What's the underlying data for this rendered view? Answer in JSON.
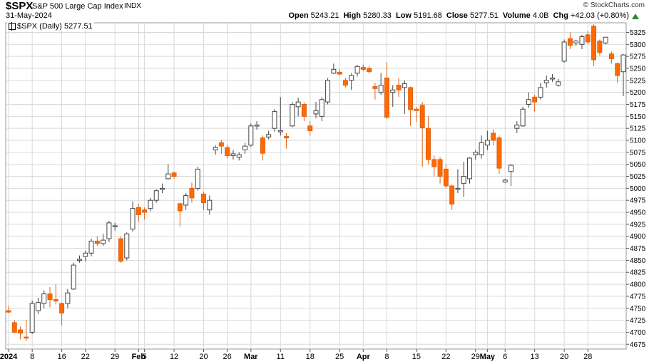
{
  "header": {
    "symbol": "$SPX",
    "name": "S&P 500 Large Cap Index",
    "exchange": "INDX",
    "date": "31-May-2024",
    "credit": "© StockCharts.com",
    "open_label": "Open",
    "open": "5243.21",
    "high_label": "High",
    "high": "5280.33",
    "low_label": "Low",
    "low": "5191.68",
    "close_label": "Close",
    "close": "5277.51",
    "volume_label": "Volume",
    "volume": "4.0B",
    "chg_label": "Chg",
    "chg": "+42.03 (+0.80%)",
    "chg_icon": "up-triangle-icon"
  },
  "legend": {
    "text": "$SPX (Daily) 5277.51"
  },
  "colors": {
    "up": "#ffffff",
    "up_stroke": "#444444",
    "down": "#ff6a00",
    "down_stroke": "#e06010",
    "neutral": "#8a9099",
    "grid": "#d9d9d9"
  },
  "chart_data": {
    "type": "candlestick",
    "ylim": [
      4665,
      5345
    ],
    "y_ticks": [
      4675,
      4700,
      4725,
      4750,
      4775,
      4800,
      4825,
      4850,
      4875,
      4900,
      4925,
      4950,
      4975,
      5000,
      5025,
      5050,
      5075,
      5100,
      5125,
      5150,
      5175,
      5200,
      5225,
      5250,
      5275,
      5300,
      5325
    ],
    "x_labels": [
      {
        "i": 0,
        "label": "2024",
        "bold": true
      },
      {
        "i": 4,
        "label": "8"
      },
      {
        "i": 9,
        "label": "16"
      },
      {
        "i": 13,
        "label": "22"
      },
      {
        "i": 18,
        "label": "29"
      },
      {
        "i": 22,
        "label": "Feb",
        "bold": true
      },
      {
        "i": 23,
        "label": "5"
      },
      {
        "i": 28,
        "label": "12"
      },
      {
        "i": 33,
        "label": "20"
      },
      {
        "i": 37,
        "label": "26"
      },
      {
        "i": 41,
        "label": "Mar",
        "bold": true
      },
      {
        "i": 46,
        "label": "11"
      },
      {
        "i": 51,
        "label": "18"
      },
      {
        "i": 56,
        "label": "25"
      },
      {
        "i": 60,
        "label": "Apr",
        "bold": true
      },
      {
        "i": 64,
        "label": "8"
      },
      {
        "i": 69,
        "label": "15"
      },
      {
        "i": 74,
        "label": "22"
      },
      {
        "i": 79,
        "label": "29"
      },
      {
        "i": 81,
        "label": "May",
        "bold": true
      },
      {
        "i": 84,
        "label": "6"
      },
      {
        "i": 89,
        "label": "13"
      },
      {
        "i": 94,
        "label": "20"
      },
      {
        "i": 98,
        "label": "28"
      }
    ],
    "candles": [
      {
        "o": 4745,
        "h": 4755,
        "l": 4740,
        "c": 4742
      },
      {
        "o": 4720,
        "h": 4725,
        "l": 4698,
        "c": 4700
      },
      {
        "o": 4705,
        "h": 4712,
        "l": 4685,
        "c": 4698
      },
      {
        "o": 4690,
        "h": 4726,
        "l": 4682,
        "c": 4688
      },
      {
        "o": 4700,
        "h": 4766,
        "l": 4696,
        "c": 4760
      },
      {
        "o": 4745,
        "h": 4772,
        "l": 4738,
        "c": 4762
      },
      {
        "o": 4760,
        "h": 4787,
        "l": 4750,
        "c": 4780
      },
      {
        "o": 4780,
        "h": 4794,
        "l": 4752,
        "c": 4768
      },
      {
        "o": 4768,
        "h": 4800,
        "l": 4758,
        "c": 4765
      },
      {
        "o": 4760,
        "h": 4762,
        "l": 4715,
        "c": 4740
      },
      {
        "o": 4760,
        "h": 4790,
        "l": 4750,
        "c": 4782
      },
      {
        "o": 4790,
        "h": 4845,
        "l": 4788,
        "c": 4840
      },
      {
        "o": 4850,
        "h": 4860,
        "l": 4845,
        "c": 4852
      },
      {
        "o": 4858,
        "h": 4870,
        "l": 4848,
        "c": 4865
      },
      {
        "o": 4865,
        "h": 4895,
        "l": 4858,
        "c": 4890
      },
      {
        "o": 4890,
        "h": 4900,
        "l": 4880,
        "c": 4885
      },
      {
        "o": 4885,
        "h": 4905,
        "l": 4880,
        "c": 4892
      },
      {
        "o": 4895,
        "h": 4932,
        "l": 4888,
        "c": 4928
      },
      {
        "o": 4920,
        "h": 4928,
        "l": 4912,
        "c": 4922
      },
      {
        "o": 4895,
        "h": 4900,
        "l": 4845,
        "c": 4848
      },
      {
        "o": 4855,
        "h": 4908,
        "l": 4850,
        "c": 4905
      },
      {
        "o": 4915,
        "h": 4973,
        "l": 4910,
        "c": 4958
      },
      {
        "o": 4960,
        "h": 4968,
        "l": 4930,
        "c": 4945
      },
      {
        "o": 4955,
        "h": 4960,
        "l": 4935,
        "c": 4950
      },
      {
        "o": 4958,
        "h": 4980,
        "l": 4952,
        "c": 4975
      },
      {
        "o": 4975,
        "h": 4998,
        "l": 4970,
        "c": 4995
      },
      {
        "o": 4998,
        "h": 5010,
        "l": 4990,
        "c": 5000
      },
      {
        "o": 5020,
        "h": 5050,
        "l": 5018,
        "c": 5030
      },
      {
        "o": 5032,
        "h": 5035,
        "l": 5020,
        "c": 5025
      },
      {
        "o": 4968,
        "h": 4970,
        "l": 4920,
        "c": 4953
      },
      {
        "o": 4965,
        "h": 4990,
        "l": 4955,
        "c": 4985
      },
      {
        "o": 5000,
        "h": 5012,
        "l": 4970,
        "c": 4980
      },
      {
        "o": 5000,
        "h": 5045,
        "l": 4995,
        "c": 5040
      },
      {
        "o": 4988,
        "h": 4992,
        "l": 4955,
        "c": 4970
      },
      {
        "o": 4955,
        "h": 4985,
        "l": 4945,
        "c": 4975
      },
      {
        "o": 5080,
        "h": 5090,
        "l": 5070,
        "c": 5085
      },
      {
        "o": 5095,
        "h": 5101,
        "l": 5072,
        "c": 5088
      },
      {
        "o": 5085,
        "h": 5091,
        "l": 5062,
        "c": 5068
      },
      {
        "o": 5068,
        "h": 5080,
        "l": 5060,
        "c": 5072
      },
      {
        "o": 5065,
        "h": 5075,
        "l": 5058,
        "c": 5070
      },
      {
        "o": 5080,
        "h": 5095,
        "l": 5072,
        "c": 5088
      },
      {
        "o": 5090,
        "h": 5135,
        "l": 5086,
        "c": 5130
      },
      {
        "o": 5130,
        "h": 5140,
        "l": 5122,
        "c": 5132
      },
      {
        "o": 5105,
        "h": 5110,
        "l": 5058,
        "c": 5073
      },
      {
        "o": 5107,
        "h": 5120,
        "l": 5102,
        "c": 5112
      },
      {
        "o": 5125,
        "h": 5165,
        "l": 5118,
        "c": 5160
      },
      {
        "o": 5120,
        "h": 5190,
        "l": 5110,
        "c": 5120
      },
      {
        "o": 5108,
        "h": 5115,
        "l": 5083,
        "c": 5105
      },
      {
        "o": 5130,
        "h": 5180,
        "l": 5127,
        "c": 5175
      },
      {
        "o": 5170,
        "h": 5189,
        "l": 5150,
        "c": 5180
      },
      {
        "o": 5175,
        "h": 5179,
        "l": 5140,
        "c": 5150
      },
      {
        "o": 5130,
        "h": 5140,
        "l": 5110,
        "c": 5120
      },
      {
        "o": 5155,
        "h": 5180,
        "l": 5146,
        "c": 5162
      },
      {
        "o": 5150,
        "h": 5190,
        "l": 5140,
        "c": 5185
      },
      {
        "o": 5180,
        "h": 5230,
        "l": 5175,
        "c": 5225
      },
      {
        "o": 5240,
        "h": 5260,
        "l": 5238,
        "c": 5248
      },
      {
        "o": 5242,
        "h": 5248,
        "l": 5236,
        "c": 5238
      },
      {
        "o": 5225,
        "h": 5230,
        "l": 5211,
        "c": 5215
      },
      {
        "o": 5225,
        "h": 5240,
        "l": 5205,
        "c": 5235
      },
      {
        "o": 5240,
        "h": 5257,
        "l": 5233,
        "c": 5254
      },
      {
        "o": 5252,
        "h": 5258,
        "l": 5245,
        "c": 5248
      },
      {
        "o": 5250,
        "h": 5255,
        "l": 5240,
        "c": 5243
      },
      {
        "o": 5212,
        "h": 5220,
        "l": 5185,
        "c": 5208
      },
      {
        "o": 5200,
        "h": 5240,
        "l": 5195,
        "c": 5215
      },
      {
        "o": 5230,
        "h": 5263,
        "l": 5145,
        "c": 5148
      },
      {
        "o": 5200,
        "h": 5215,
        "l": 5170,
        "c": 5205
      },
      {
        "o": 5215,
        "h": 5230,
        "l": 5190,
        "c": 5205
      },
      {
        "o": 5210,
        "h": 5225,
        "l": 5155,
        "c": 5218
      },
      {
        "o": 5210,
        "h": 5212,
        "l": 5130,
        "c": 5164
      },
      {
        "o": 5165,
        "h": 5170,
        "l": 5138,
        "c": 5162
      },
      {
        "o": 5173,
        "h": 5180,
        "l": 5045,
        "c": 5126
      },
      {
        "o": 5125,
        "h": 5150,
        "l": 5050,
        "c": 5060
      },
      {
        "o": 5060,
        "h": 5068,
        "l": 5025,
        "c": 5045
      },
      {
        "o": 5060,
        "h": 5065,
        "l": 5010,
        "c": 5025
      },
      {
        "o": 5040,
        "h": 5050,
        "l": 5000,
        "c": 5005
      },
      {
        "o": 5005,
        "h": 5008,
        "l": 4955,
        "c": 4967
      },
      {
        "o": 5000,
        "h": 5040,
        "l": 4990,
        "c": 5000
      },
      {
        "o": 5010,
        "h": 5055,
        "l": 4982,
        "c": 5025
      },
      {
        "o": 5020,
        "h": 5065,
        "l": 5010,
        "c": 5063
      },
      {
        "o": 5070,
        "h": 5080,
        "l": 5060,
        "c": 5075
      },
      {
        "o": 5070,
        "h": 5110,
        "l": 5062,
        "c": 5095
      },
      {
        "o": 5090,
        "h": 5120,
        "l": 5080,
        "c": 5100
      },
      {
        "o": 5115,
        "h": 5123,
        "l": 5090,
        "c": 5100
      },
      {
        "o": 5105,
        "h": 5110,
        "l": 5030,
        "c": 5042
      },
      {
        "o": 5013,
        "h": 5020,
        "l": 5011,
        "c": 5017
      },
      {
        "o": 5035,
        "h": 5050,
        "l": 5005,
        "c": 5048
      },
      {
        "o": 5125,
        "h": 5140,
        "l": 5115,
        "c": 5132
      },
      {
        "o": 5130,
        "h": 5170,
        "l": 5128,
        "c": 5165
      },
      {
        "o": 5175,
        "h": 5200,
        "l": 5168,
        "c": 5185
      },
      {
        "o": 5190,
        "h": 5195,
        "l": 5160,
        "c": 5180
      },
      {
        "o": 5190,
        "h": 5220,
        "l": 5185,
        "c": 5210
      },
      {
        "o": 5220,
        "h": 5235,
        "l": 5210,
        "c": 5225
      },
      {
        "o": 5230,
        "h": 5238,
        "l": 5222,
        "c": 5230
      },
      {
        "o": 5215,
        "h": 5228,
        "l": 5212,
        "c": 5222
      },
      {
        "o": 5265,
        "h": 5310,
        "l": 5262,
        "c": 5305
      },
      {
        "o": 5312,
        "h": 5325,
        "l": 5290,
        "c": 5298
      },
      {
        "o": 5303,
        "h": 5310,
        "l": 5297,
        "c": 5307
      },
      {
        "o": 5300,
        "h": 5320,
        "l": 5290,
        "c": 5316
      },
      {
        "o": 5320,
        "h": 5328,
        "l": 5300,
        "c": 5305
      },
      {
        "o": 5338,
        "h": 5342,
        "l": 5255,
        "c": 5268
      },
      {
        "o": 5307,
        "h": 5310,
        "l": 5277,
        "c": 5283
      },
      {
        "o": 5303,
        "h": 5315,
        "l": 5300,
        "c": 5315
      },
      {
        "o": 5280,
        "h": 5285,
        "l": 5260,
        "c": 5270
      },
      {
        "o": 5260,
        "h": 5262,
        "l": 5220,
        "c": 5235
      },
      {
        "o": 5243,
        "h": 5280,
        "l": 5192,
        "c": 5278
      }
    ]
  }
}
